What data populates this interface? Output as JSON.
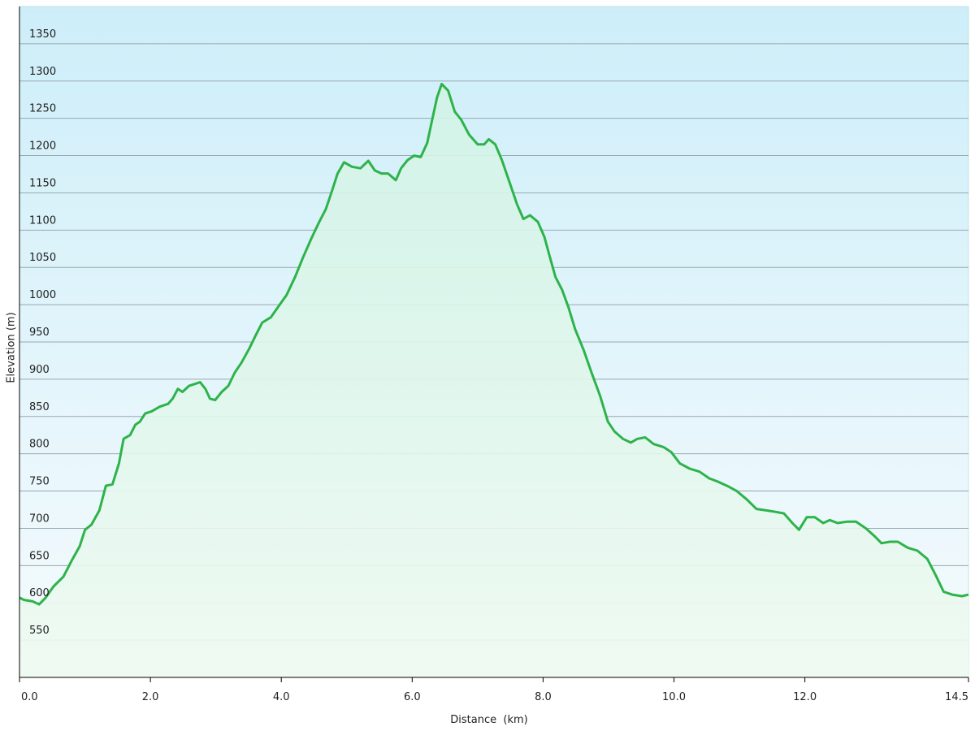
{
  "chart_data": {
    "type": "line",
    "x_label": "Distance  (km)",
    "y_label": "Elevation (m)",
    "xlim": [
      0,
      14.5
    ],
    "ylim": [
      500,
      1400
    ],
    "xticks": [
      {
        "value": 0,
        "label": "0.0"
      },
      {
        "value": 2,
        "label": "2.0"
      },
      {
        "value": 4,
        "label": "4.0"
      },
      {
        "value": 6,
        "label": "6.0"
      },
      {
        "value": 8,
        "label": "8.0"
      },
      {
        "value": 10,
        "label": "10.0"
      },
      {
        "value": 12,
        "label": "12.0"
      },
      {
        "value": 14.5,
        "label": "14.5"
      }
    ],
    "yticks": [
      550,
      600,
      650,
      700,
      750,
      800,
      850,
      900,
      950,
      1000,
      1050,
      1100,
      1150,
      1200,
      1250,
      1300,
      1350
    ],
    "grid": true,
    "color": "#2db34a",
    "x": [
      0,
      0.07,
      0.2,
      0.3,
      0.4,
      0.52,
      0.67,
      0.8,
      0.92,
      1.0,
      1.1,
      1.22,
      1.32,
      1.42,
      1.52,
      1.59,
      1.69,
      1.77,
      1.84,
      1.92,
      2.02,
      2.14,
      2.27,
      2.34,
      2.42,
      2.49,
      2.59,
      2.69,
      2.76,
      2.84,
      2.91,
      2.99,
      3.09,
      3.19,
      3.29,
      3.39,
      3.51,
      3.61,
      3.71,
      3.84,
      3.96,
      4.08,
      4.21,
      4.33,
      4.46,
      4.58,
      4.68,
      4.78,
      4.86,
      4.96,
      5.08,
      5.21,
      5.33,
      5.43,
      5.53,
      5.63,
      5.75,
      5.83,
      5.93,
      6.03,
      6.13,
      6.23,
      6.3,
      6.38,
      6.45,
      6.55,
      6.65,
      6.75,
      6.87,
      7.0,
      7.1,
      7.17,
      7.27,
      7.37,
      7.5,
      7.6,
      7.7,
      7.8,
      7.92,
      8.02,
      8.1,
      8.19,
      8.29,
      8.39,
      8.49,
      8.62,
      8.74,
      8.87,
      8.99,
      9.09,
      9.22,
      9.34,
      9.44,
      9.56,
      9.69,
      9.84,
      9.96,
      10.09,
      10.24,
      10.39,
      10.54,
      10.66,
      10.81,
      10.96,
      11.11,
      11.26,
      11.41,
      11.56,
      11.68,
      11.81,
      11.91,
      12.03,
      12.15,
      12.28,
      12.38,
      12.5,
      12.65,
      12.78,
      12.93,
      13.07,
      13.17,
      13.3,
      13.42,
      13.57,
      13.72,
      13.87,
      14.0,
      14.12,
      14.25,
      14.4,
      14.5
    ],
    "values": [
      607,
      604,
      602,
      598,
      607,
      622,
      635,
      657,
      676,
      698,
      705,
      724,
      757,
      759,
      787,
      820,
      825,
      839,
      843,
      854,
      857,
      863,
      867,
      874,
      887,
      883,
      891,
      894,
      896,
      887,
      874,
      872,
      883,
      891,
      909,
      922,
      941,
      959,
      976,
      983,
      998,
      1013,
      1037,
      1063,
      1089,
      1111,
      1128,
      1154,
      1176,
      1191,
      1185,
      1183,
      1193,
      1180,
      1176,
      1176,
      1167,
      1183,
      1194,
      1200,
      1198,
      1217,
      1246,
      1278,
      1296,
      1287,
      1259,
      1248,
      1228,
      1215,
      1215,
      1222,
      1215,
      1194,
      1161,
      1135,
      1115,
      1120,
      1111,
      1091,
      1065,
      1037,
      1020,
      996,
      967,
      939,
      909,
      878,
      843,
      830,
      820,
      815,
      820,
      822,
      813,
      809,
      802,
      787,
      780,
      776,
      767,
      763,
      757,
      750,
      739,
      726,
      724,
      722,
      720,
      707,
      698,
      715,
      715,
      707,
      711,
      707,
      709,
      709,
      700,
      689,
      680,
      682,
      682,
      674,
      670,
      659,
      637,
      615,
      611,
      609,
      611
    ]
  }
}
